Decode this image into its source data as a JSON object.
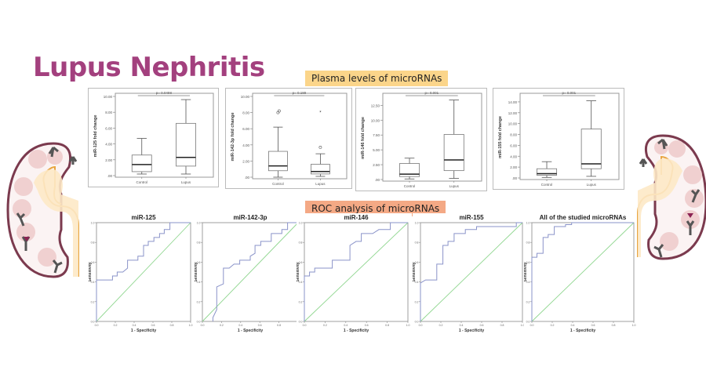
{
  "title": "Lupus Nephritis",
  "sections": {
    "plasma_label": "Plasma levels of microRNAs",
    "roc_label": "ROC analysis of microRNAs"
  },
  "colors": {
    "title": "#a3407e",
    "plasma_banner": "#fbd58a",
    "roc_banner": "#f4a985",
    "roc_curve": "#8a93c9",
    "reference_line": "#8fd68f"
  },
  "chart_data": [
    {
      "type": "box",
      "id": "box-mir125",
      "ylabel": "miR-125 fold change",
      "categories": [
        "Control",
        "Lupus"
      ],
      "yticks": [
        ".00",
        "2.00",
        "4.00",
        "6.00",
        "8.00",
        "10.00"
      ],
      "ylim": [
        0,
        10
      ],
      "p_value": "p= 0.0498",
      "boxes": [
        {
          "min": 0.2,
          "q1": 0.5,
          "median": 1.4,
          "q3": 2.6,
          "max": 4.7,
          "outliers": []
        },
        {
          "min": 0.2,
          "q1": 1.2,
          "median": 2.3,
          "q3": 6.6,
          "max": 9.6,
          "outliers": []
        }
      ]
    },
    {
      "type": "box",
      "id": "box-mir142",
      "ylabel": "miR-142-3p fold change",
      "categories": [
        "Control",
        "Lupus"
      ],
      "yticks": [
        ".00",
        "2.00",
        "4.00",
        "6.00",
        "8.00",
        "10.00"
      ],
      "ylim": [
        0,
        10
      ],
      "p_value": "p= 0.189",
      "boxes": [
        {
          "min": 0.0,
          "q1": 0.8,
          "median": 1.4,
          "q3": 3.2,
          "max": 6.2,
          "outliers": [
            8.0,
            8.2
          ]
        },
        {
          "min": 0.1,
          "q1": 0.4,
          "median": 0.7,
          "q3": 1.6,
          "max": 2.9,
          "outliers": [
            3.7
          ],
          "extremes": [
            8.0
          ]
        }
      ]
    },
    {
      "type": "box",
      "id": "box-mir146",
      "ylabel": "miR-146 fold change",
      "categories": [
        "Control",
        "Lupus"
      ],
      "yticks": [
        ".00",
        "2.50",
        "5.00",
        "7.50",
        "10.00",
        "12.50"
      ],
      "ylim": [
        0,
        14
      ],
      "p_value": "p= 0.001",
      "boxes": [
        {
          "min": 0.1,
          "q1": 0.5,
          "median": 0.9,
          "q3": 2.7,
          "max": 3.6,
          "outliers": []
        },
        {
          "min": 0.2,
          "q1": 1.5,
          "median": 3.3,
          "q3": 7.6,
          "max": 13.4,
          "outliers": []
        }
      ]
    },
    {
      "type": "box",
      "id": "box-mir155",
      "ylabel": "miR-155 fold change",
      "categories": [
        "Control",
        "Lupus"
      ],
      "yticks": [
        ".00",
        "2.00",
        "4.00",
        "6.00",
        "8.00",
        "10.00",
        "12.00",
        "14.00"
      ],
      "ylim": [
        0,
        15
      ],
      "p_value": "p= 0.001",
      "boxes": [
        {
          "min": 0.1,
          "q1": 0.5,
          "median": 0.8,
          "q3": 1.7,
          "max": 3.0,
          "outliers": []
        },
        {
          "min": 0.3,
          "q1": 1.7,
          "median": 2.6,
          "q3": 9.0,
          "max": 14.2,
          "outliers": []
        }
      ]
    },
    {
      "type": "line",
      "id": "roc-mir125",
      "title": "miR-125",
      "xlabel": "1 - Specificity",
      "ylabel": "Sensitivity",
      "xticks": [
        "0.0",
        "0.2",
        "0.4",
        "0.6",
        "0.8",
        "1.0"
      ],
      "yticks": [
        "0.0",
        "0.2",
        "0.4",
        "0.6",
        "0.8",
        "1.0"
      ],
      "xlim": [
        0,
        1
      ],
      "ylim": [
        0,
        1
      ],
      "curve": [
        [
          0,
          0
        ],
        [
          0,
          0.42
        ],
        [
          0.17,
          0.42
        ],
        [
          0.17,
          0.46
        ],
        [
          0.22,
          0.46
        ],
        [
          0.22,
          0.5
        ],
        [
          0.28,
          0.5
        ],
        [
          0.33,
          0.54
        ],
        [
          0.33,
          0.62
        ],
        [
          0.44,
          0.62
        ],
        [
          0.44,
          0.66
        ],
        [
          0.5,
          0.66
        ],
        [
          0.5,
          0.77
        ],
        [
          0.55,
          0.77
        ],
        [
          0.55,
          0.81
        ],
        [
          0.61,
          0.81
        ],
        [
          0.61,
          0.85
        ],
        [
          0.67,
          0.85
        ],
        [
          0.67,
          0.89
        ],
        [
          0.72,
          0.89
        ],
        [
          0.72,
          0.93
        ],
        [
          0.78,
          0.93
        ],
        [
          0.78,
          1.0
        ],
        [
          1,
          1
        ]
      ]
    },
    {
      "type": "line",
      "id": "roc-mir142",
      "title": "miR-142-3p",
      "xlabel": "1 - Specificity",
      "ylabel": "Sensitivity",
      "xticks": [
        "0.0",
        "0.2",
        "0.4",
        "0.6",
        "0.8",
        "1.0"
      ],
      "yticks": [
        "0.0",
        "0.2",
        "0.4",
        "0.6",
        "0.8",
        "1.0"
      ],
      "xlim": [
        0,
        1
      ],
      "ylim": [
        0,
        1
      ],
      "curve": [
        [
          0.11,
          0
        ],
        [
          0.11,
          0.04
        ],
        [
          0.15,
          0.12
        ],
        [
          0.15,
          0.35
        ],
        [
          0.22,
          0.38
        ],
        [
          0.22,
          0.54
        ],
        [
          0.28,
          0.54
        ],
        [
          0.33,
          0.58
        ],
        [
          0.39,
          0.58
        ],
        [
          0.39,
          0.62
        ],
        [
          0.5,
          0.62
        ],
        [
          0.5,
          0.66
        ],
        [
          0.55,
          0.69
        ],
        [
          0.55,
          0.77
        ],
        [
          0.61,
          0.77
        ],
        [
          0.61,
          0.81
        ],
        [
          0.72,
          0.81
        ],
        [
          0.72,
          0.89
        ],
        [
          0.83,
          0.89
        ],
        [
          0.83,
          0.93
        ],
        [
          0.89,
          0.93
        ],
        [
          0.89,
          1.0
        ],
        [
          1,
          1
        ]
      ]
    },
    {
      "type": "line",
      "id": "roc-mir146",
      "title": "miR-146",
      "xlabel": "1 - Specificity",
      "ylabel": "Sensitivity",
      "xticks": [
        "0.0",
        "0.2",
        "0.4",
        "0.6",
        "0.8",
        "1.0"
      ],
      "yticks": [
        "0.0",
        "0.2",
        "0.4",
        "0.6",
        "0.8",
        "1.0"
      ],
      "xlim": [
        0,
        1
      ],
      "ylim": [
        0,
        1
      ],
      "curve": [
        [
          0,
          0
        ],
        [
          0,
          0.46
        ],
        [
          0.05,
          0.46
        ],
        [
          0.05,
          0.5
        ],
        [
          0.1,
          0.5
        ],
        [
          0.1,
          0.54
        ],
        [
          0.27,
          0.54
        ],
        [
          0.27,
          0.62
        ],
        [
          0.44,
          0.62
        ],
        [
          0.44,
          0.77
        ],
        [
          0.5,
          0.81
        ],
        [
          0.55,
          0.81
        ],
        [
          0.55,
          0.89
        ],
        [
          0.66,
          0.89
        ],
        [
          0.72,
          0.93
        ],
        [
          0.83,
          0.93
        ],
        [
          0.83,
          1.0
        ],
        [
          1,
          1
        ]
      ]
    },
    {
      "type": "line",
      "id": "roc-mir155",
      "title": "miR-155",
      "xlabel": "1 - Specificity",
      "ylabel": "Sensitivity",
      "xticks": [
        "0.0",
        "0.2",
        "0.4",
        "0.6",
        "0.8",
        "1.0"
      ],
      "yticks": [
        "0.0",
        "0.2",
        "0.4",
        "0.6",
        "0.8",
        "1.0"
      ],
      "xlim": [
        0,
        1
      ],
      "ylim": [
        0,
        1
      ],
      "curve": [
        [
          0,
          0
        ],
        [
          0,
          0.39
        ],
        [
          0.05,
          0.42
        ],
        [
          0.16,
          0.42
        ],
        [
          0.16,
          0.58
        ],
        [
          0.22,
          0.58
        ],
        [
          0.22,
          0.77
        ],
        [
          0.27,
          0.77
        ],
        [
          0.27,
          0.81
        ],
        [
          0.33,
          0.81
        ],
        [
          0.33,
          0.89
        ],
        [
          0.44,
          0.89
        ],
        [
          0.44,
          0.93
        ],
        [
          0.55,
          0.93
        ],
        [
          0.55,
          0.96
        ],
        [
          0.94,
          0.96
        ],
        [
          0.94,
          1.0
        ],
        [
          1,
          1
        ]
      ]
    },
    {
      "type": "line",
      "id": "roc-all",
      "title": "All of the studied microRNAs",
      "xlabel": "1 - Specificity",
      "ylabel": "Sensitivity",
      "xticks": [
        "0.0",
        "0.2",
        "0.4",
        "0.6",
        "0.8",
        "1.0"
      ],
      "yticks": [
        "0.0",
        "0.2",
        "0.4",
        "0.6",
        "0.8",
        "1.0"
      ],
      "xlim": [
        0,
        1
      ],
      "ylim": [
        0,
        1
      ],
      "curve": [
        [
          0,
          0
        ],
        [
          0,
          0.65
        ],
        [
          0.05,
          0.65
        ],
        [
          0.05,
          0.69
        ],
        [
          0.11,
          0.69
        ],
        [
          0.11,
          0.85
        ],
        [
          0.16,
          0.85
        ],
        [
          0.16,
          0.88
        ],
        [
          0.22,
          0.88
        ],
        [
          0.22,
          0.96
        ],
        [
          0.33,
          0.96
        ],
        [
          0.33,
          0.98
        ],
        [
          0.39,
          0.98
        ],
        [
          0.39,
          1.0
        ],
        [
          1,
          1
        ]
      ]
    }
  ]
}
